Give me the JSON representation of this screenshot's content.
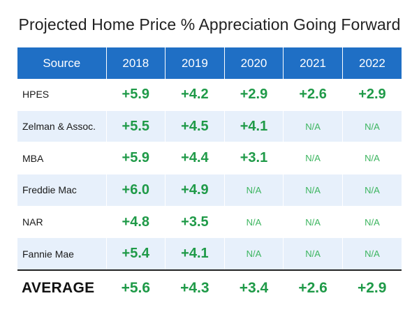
{
  "title": "Projected Home Price % Appreciation Going Forward",
  "colors": {
    "header_bg": "#1f6fc5",
    "value_green": "#1f9a48",
    "na_green": "#3cb55f",
    "stripe": "#e7f0fb"
  },
  "table": {
    "headers": [
      "Source",
      "2018",
      "2019",
      "2020",
      "2021",
      "2022"
    ],
    "rows": [
      {
        "source": "HPES",
        "values": [
          "+5.9",
          "+4.2",
          "+2.9",
          "+2.6",
          "+2.9"
        ]
      },
      {
        "source": "Zelman & Assoc.",
        "values": [
          "+5.5",
          "+4.5",
          "+4.1",
          "N/A",
          "N/A"
        ]
      },
      {
        "source": "MBA",
        "values": [
          "+5.9",
          "+4.4",
          "+3.1",
          "N/A",
          "N/A"
        ]
      },
      {
        "source": "Freddie Mac",
        "values": [
          "+6.0",
          "+4.9",
          "N/A",
          "N/A",
          "N/A"
        ]
      },
      {
        "source": "NAR",
        "values": [
          "+4.8",
          "+3.5",
          "N/A",
          "N/A",
          "N/A"
        ]
      },
      {
        "source": "Fannie Mae",
        "values": [
          "+5.4",
          "+4.1",
          "N/A",
          "N/A",
          "N/A"
        ]
      }
    ],
    "average": {
      "label": "AVERAGE",
      "values": [
        "+5.6",
        "+4.3",
        "+3.4",
        "+2.6",
        "+2.9"
      ]
    }
  }
}
